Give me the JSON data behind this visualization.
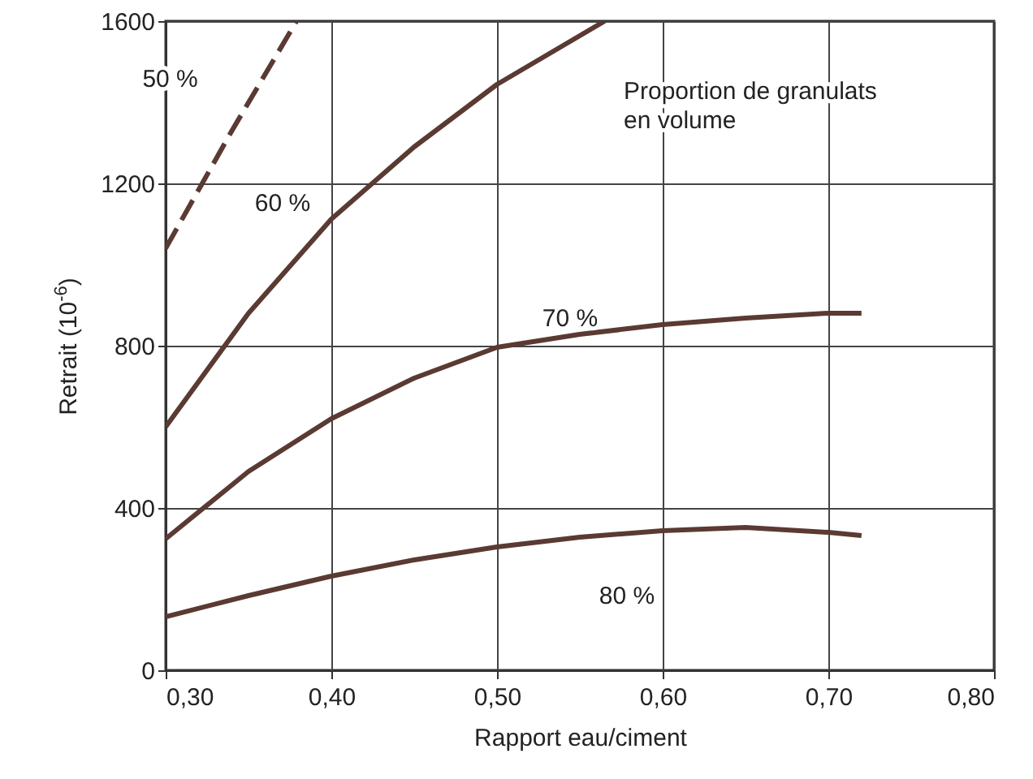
{
  "chart_data": {
    "type": "line",
    "xlabel": "Rapport eau/ciment",
    "ylabel": "Retrait (10$^{-6}$)",
    "xlim": [
      0.3,
      0.8
    ],
    "xticks": [
      {
        "value": 0.3,
        "label": "0,30"
      },
      {
        "value": 0.4,
        "label": "0,40"
      },
      {
        "value": 0.5,
        "label": "0,50"
      },
      {
        "value": 0.6,
        "label": "0,60"
      },
      {
        "value": 0.7,
        "label": "0,70"
      },
      {
        "value": 0.8,
        "label": "0,80"
      }
    ],
    "ylim": [
      0,
      1600
    ],
    "yticks": [
      0,
      400,
      800,
      1200,
      1600
    ],
    "grid": true,
    "marker": "none",
    "series": [
      {
        "name": "50 %",
        "color": "#5a3a32",
        "line_style": "dashed",
        "x": [
          0.3,
          0.34,
          0.379
        ],
        "values": [
          1040,
          1330,
          1600
        ]
      },
      {
        "name": "60 %",
        "color": "#5a3a32",
        "line_style": "solid",
        "x": [
          0.3,
          0.35,
          0.4,
          0.45,
          0.5,
          0.565
        ],
        "values": [
          600,
          880,
          1112,
          1290,
          1444,
          1600
        ]
      },
      {
        "name": "70 %",
        "color": "#5a3a32",
        "line_style": "solid",
        "x": [
          0.3,
          0.35,
          0.4,
          0.45,
          0.5,
          0.55,
          0.6,
          0.65,
          0.7,
          0.72
        ],
        "values": [
          324,
          490,
          620,
          720,
          796,
          828,
          852,
          868,
          880,
          880
        ]
      },
      {
        "name": "80 %",
        "color": "#5a3a32",
        "line_style": "solid",
        "x": [
          0.3,
          0.35,
          0.4,
          0.45,
          0.5,
          0.55,
          0.6,
          0.65,
          0.7,
          0.72
        ],
        "values": [
          132,
          184,
          232,
          272,
          304,
          328,
          344,
          352,
          340,
          332
        ]
      }
    ],
    "annotations": [
      "Proportion de granulats en volume"
    ]
  }
}
